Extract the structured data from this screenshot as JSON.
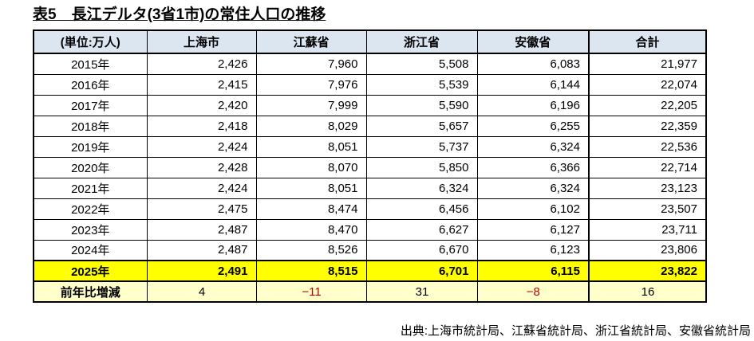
{
  "title": "表5　長江デルタ(3省1市)の常住人口の推移",
  "table": {
    "headers": [
      "(単位:万人)",
      "上海市",
      "江蘇省",
      "浙江省",
      "安徽省",
      "合計"
    ],
    "rows": [
      {
        "type": "data",
        "label": "2015年",
        "values": [
          "2,426",
          "7,960",
          "5,508",
          "6,083",
          "21,977"
        ]
      },
      {
        "type": "data",
        "label": "2016年",
        "values": [
          "2,415",
          "7,976",
          "5,539",
          "6,144",
          "22,074"
        ]
      },
      {
        "type": "data",
        "label": "2017年",
        "values": [
          "2,420",
          "7,999",
          "5,590",
          "6,196",
          "22,205"
        ]
      },
      {
        "type": "data",
        "label": "2018年",
        "values": [
          "2,418",
          "8,029",
          "5,657",
          "6,255",
          "22,359"
        ]
      },
      {
        "type": "data",
        "label": "2019年",
        "values": [
          "2,424",
          "8,051",
          "5,737",
          "6,324",
          "22,536"
        ]
      },
      {
        "type": "data",
        "label": "2020年",
        "values": [
          "2,428",
          "8,070",
          "5,850",
          "6,366",
          "22,714"
        ]
      },
      {
        "type": "data",
        "label": "2021年",
        "values": [
          "2,424",
          "8,051",
          "6,324",
          "6,324",
          "23,123"
        ]
      },
      {
        "type": "data",
        "label": "2022年",
        "values": [
          "2,475",
          "8,474",
          "6,456",
          "6,102",
          "23,507"
        ]
      },
      {
        "type": "data",
        "label": "2023年",
        "values": [
          "2,487",
          "8,470",
          "6,627",
          "6,127",
          "23,711"
        ]
      },
      {
        "type": "data",
        "label": "2024年",
        "values": [
          "2,487",
          "8,526",
          "6,670",
          "6,123",
          "23,806"
        ]
      },
      {
        "type": "highlight",
        "label": "2025年",
        "values": [
          "2,491",
          "8,515",
          "6,701",
          "6,115",
          "23,822"
        ]
      },
      {
        "type": "change",
        "label": "前年比増減",
        "values": [
          "4",
          "−11",
          "31",
          "−8",
          "16"
        ]
      }
    ]
  },
  "footer": {
    "source": "出典:上海市統計局、江蘇省統計局、浙江省統計局、安徽省統計局"
  },
  "colors": {
    "header_bg": "#DCE6F1",
    "highlight_bg": "#FFFF00",
    "change_bg": "#FFFFCC",
    "negative_text": "#C00000",
    "border": "#000000",
    "text": "#000000"
  }
}
